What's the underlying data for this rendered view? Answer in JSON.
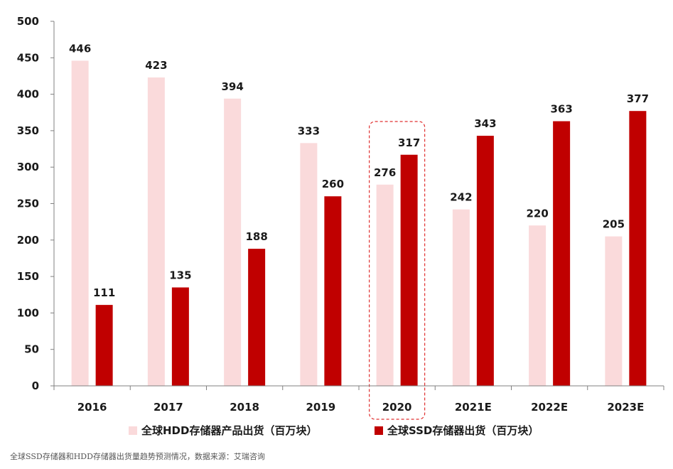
{
  "chart_data": {
    "type": "bar",
    "categories": [
      "2016",
      "2017",
      "2018",
      "2019",
      "2020",
      "2021E",
      "2022E",
      "2023E"
    ],
    "series": [
      {
        "name": "全球HDD存储器产品出货（百万块）",
        "values": [
          446,
          423,
          394,
          333,
          276,
          242,
          220,
          205
        ],
        "color": "#fadadb"
      },
      {
        "name": "全球SSD存储器出货（百万块）",
        "values": [
          111,
          135,
          188,
          260,
          317,
          343,
          363,
          377
        ],
        "color": "#c00000"
      }
    ],
    "yticks": [
      "0",
      "50",
      "100",
      "150",
      "200",
      "250",
      "300",
      "350",
      "400",
      "450",
      "500"
    ],
    "ylim": [
      0,
      500
    ],
    "grid": false,
    "legend_position": "bottom",
    "highlight_category": "2020",
    "highlight_color": "#e03030"
  },
  "footer": {
    "source": "全球SSD存储器和HDD存储器出货量趋势预测情况，数据来源：艾瑞咨询"
  }
}
